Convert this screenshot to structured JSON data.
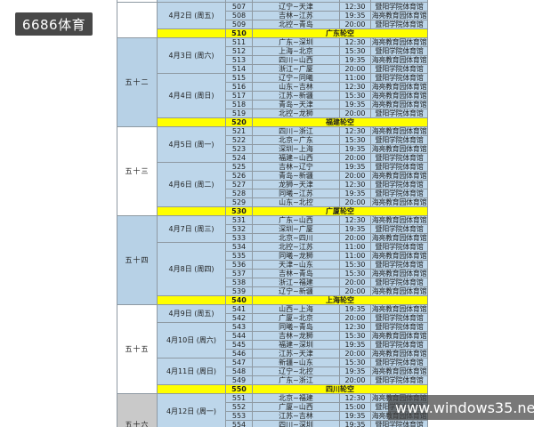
{
  "watermarks": {
    "logo": {
      "text": "6686体育",
      "bg": "#484848",
      "text_color": "#ffffff"
    },
    "site": {
      "text": "www.windows35.net",
      "bg": "rgba(68,68,68,0.72)",
      "text_color": "#ffffff"
    }
  },
  "table": {
    "columns": [
      "week",
      "date",
      "no",
      "teams",
      "time",
      "venue"
    ],
    "colors": {
      "cell_blue": "#bdd6ea",
      "week_blue": "#b7d1e6",
      "week_white": "#ffffff",
      "week_grey": "#c9c9c9",
      "bye_yellow": "#ffff00",
      "border": "#8e99a2",
      "text": "#1d1d1d"
    },
    "venues": [
      "暨阳学院体育馆",
      "海亮教育园体育馆"
    ],
    "sections": [
      {
        "week": "",
        "week_bg": "weekwhite",
        "days": [
          {
            "date": "4月2日 (周五)",
            "games": [
              {
                "no": "507",
                "teams": "辽宁~天津",
                "time": "12:30",
                "venue": "暨阳学院体育馆"
              },
              {
                "no": "508",
                "teams": "吉林~江苏",
                "time": "19:35",
                "venue": "海亮教育园体育馆"
              },
              {
                "no": "509",
                "teams": "北控~青岛",
                "time": "20:00",
                "venue": "暨阳学院体育馆"
              }
            ]
          }
        ],
        "bye": {
          "no": "510",
          "label": "广东轮空"
        }
      },
      {
        "week": "五十二",
        "week_bg": "weekblue",
        "days": [
          {
            "date": "4月3日 (周六)",
            "games": [
              {
                "no": "511",
                "teams": "广东~深圳",
                "time": "12:30",
                "venue": "海亮教育园体育馆"
              },
              {
                "no": "512",
                "teams": "上海~北京",
                "time": "15:30",
                "venue": "暨阳学院体育馆"
              },
              {
                "no": "513",
                "teams": "四川~山西",
                "time": "19:35",
                "venue": "海亮教育园体育馆"
              },
              {
                "no": "514",
                "teams": "浙江~广厦",
                "time": "20:00",
                "venue": "暨阳学院体育馆"
              }
            ]
          },
          {
            "date": "4月4日 (周日)",
            "games": [
              {
                "no": "515",
                "teams": "辽宁~同曦",
                "time": "11:00",
                "venue": "暨阳学院体育馆"
              },
              {
                "no": "516",
                "teams": "山东~吉林",
                "time": "12:30",
                "venue": "海亮教育园体育馆"
              },
              {
                "no": "517",
                "teams": "江苏~新疆",
                "time": "15:30",
                "venue": "海亮教育园体育馆"
              },
              {
                "no": "518",
                "teams": "青岛~天津",
                "time": "19:35",
                "venue": "海亮教育园体育馆"
              },
              {
                "no": "519",
                "teams": "北控~龙狮",
                "time": "20:00",
                "venue": "暨阳学院体育馆"
              }
            ]
          }
        ],
        "bye": {
          "no": "520",
          "label": "福建轮空"
        }
      },
      {
        "week": "五十三",
        "week_bg": "weekwhite",
        "days": [
          {
            "date": "4月5日 (周一)",
            "games": [
              {
                "no": "521",
                "teams": "四川~浙江",
                "time": "12:30",
                "venue": "海亮教育园体育馆"
              },
              {
                "no": "522",
                "teams": "北京~广东",
                "time": "15:30",
                "venue": "暨阳学院体育馆"
              },
              {
                "no": "523",
                "teams": "深圳~上海",
                "time": "19:35",
                "venue": "海亮教育园体育馆"
              },
              {
                "no": "524",
                "teams": "福建~山西",
                "time": "20:00",
                "venue": "暨阳学院体育馆"
              }
            ]
          },
          {
            "date": "4月6日 (周二)",
            "games": [
              {
                "no": "525",
                "teams": "吉林~辽宁",
                "time": "19:35",
                "venue": "暨阳学院体育馆"
              },
              {
                "no": "526",
                "teams": "青岛~新疆",
                "time": "20:00",
                "venue": "海亮教育园体育馆"
              },
              {
                "no": "527",
                "teams": "龙狮~天津",
                "time": "12:30",
                "venue": "暨阳学院体育馆"
              },
              {
                "no": "528",
                "teams": "同曦~江苏",
                "time": "19:35",
                "venue": "暨阳学院体育馆"
              },
              {
                "no": "529",
                "teams": "山东~北控",
                "time": "20:00",
                "venue": "海亮教育园体育馆"
              }
            ]
          }
        ],
        "bye": {
          "no": "530",
          "label": "广厦轮空"
        }
      },
      {
        "week": "五十四",
        "week_bg": "weekblue",
        "days": [
          {
            "date": "4月7日 (周三)",
            "games": [
              {
                "no": "531",
                "teams": "广东~山西",
                "time": "12:30",
                "venue": "海亮教育园体育馆"
              },
              {
                "no": "532",
                "teams": "深圳~广厦",
                "time": "19:35",
                "venue": "暨阳学院体育馆"
              },
              {
                "no": "533",
                "teams": "北京~四川",
                "time": "20:00",
                "venue": "海亮教育园体育馆"
              }
            ]
          },
          {
            "date": "4月8日 (周四)",
            "games": [
              {
                "no": "534",
                "teams": "北控~江苏",
                "time": "11:00",
                "venue": "暨阳学院体育馆"
              },
              {
                "no": "535",
                "teams": "同曦~龙狮",
                "time": "11:00",
                "venue": "海亮教育园体育馆"
              },
              {
                "no": "536",
                "teams": "天津~山东",
                "time": "15:30",
                "venue": "暨阳学院体育馆"
              },
              {
                "no": "537",
                "teams": "吉林~青岛",
                "time": "15:30",
                "venue": "海亮教育园体育馆"
              },
              {
                "no": "538",
                "teams": "浙江~福建",
                "time": "20:00",
                "venue": "暨阳学院体育馆"
              },
              {
                "no": "539",
                "teams": "辽宁~新疆",
                "time": "20:00",
                "venue": "海亮教育园体育馆"
              }
            ]
          }
        ],
        "bye": {
          "no": "540",
          "label": "上海轮空"
        }
      },
      {
        "week": "五十五",
        "week_bg": "weekwhite",
        "days": [
          {
            "date": "4月9日 (周五)",
            "games": [
              {
                "no": "541",
                "teams": "山西~上海",
                "time": "19:35",
                "venue": "海亮教育园体育馆"
              },
              {
                "no": "542",
                "teams": "广厦~北京",
                "time": "20:00",
                "venue": "暨阳学院体育馆"
              }
            ]
          },
          {
            "date": "4月10日 (周六)",
            "games": [
              {
                "no": "543",
                "teams": "同曦~青岛",
                "time": "12:30",
                "venue": "暨阳学院体育馆"
              },
              {
                "no": "544",
                "teams": "吉林~龙狮",
                "time": "15:30",
                "venue": "海亮教育园体育馆"
              },
              {
                "no": "545",
                "teams": "福建~深圳",
                "time": "19:35",
                "venue": "暨阳学院体育馆"
              },
              {
                "no": "546",
                "teams": "江苏~天津",
                "time": "20:00",
                "venue": "海亮教育园体育馆"
              }
            ]
          },
          {
            "date": "4月11日 (周日)",
            "games": [
              {
                "no": "547",
                "teams": "新疆~山东",
                "time": "15:30",
                "venue": "暨阳学院体育馆"
              },
              {
                "no": "548",
                "teams": "辽宁~北控",
                "time": "19:35",
                "venue": "海亮教育园体育馆"
              },
              {
                "no": "549",
                "teams": "广东~浙江",
                "time": "20:00",
                "venue": "暨阳学院体育馆"
              }
            ]
          }
        ],
        "bye": {
          "no": "550",
          "label": "四川轮空"
        }
      },
      {
        "week": "五十六",
        "week_bg": "weekgrey",
        "days": [
          {
            "date": "4月12日 (周一)",
            "games": [
              {
                "no": "551",
                "teams": "北京~福建",
                "time": "12:30",
                "venue": "海亮教育园体育馆"
              },
              {
                "no": "552",
                "teams": "广厦~山西",
                "time": "15:00",
                "venue": "暨阳学院体育馆"
              },
              {
                "no": "553",
                "teams": "江苏~吉林",
                "time": "19:35",
                "venue": "海亮教育园体育馆"
              },
              {
                "no": "554",
                "teams": "四川~深圳",
                "time": "19:35",
                "venue": "暨阳学院体育馆"
              }
            ]
          }
        ],
        "bye": null
      }
    ]
  }
}
